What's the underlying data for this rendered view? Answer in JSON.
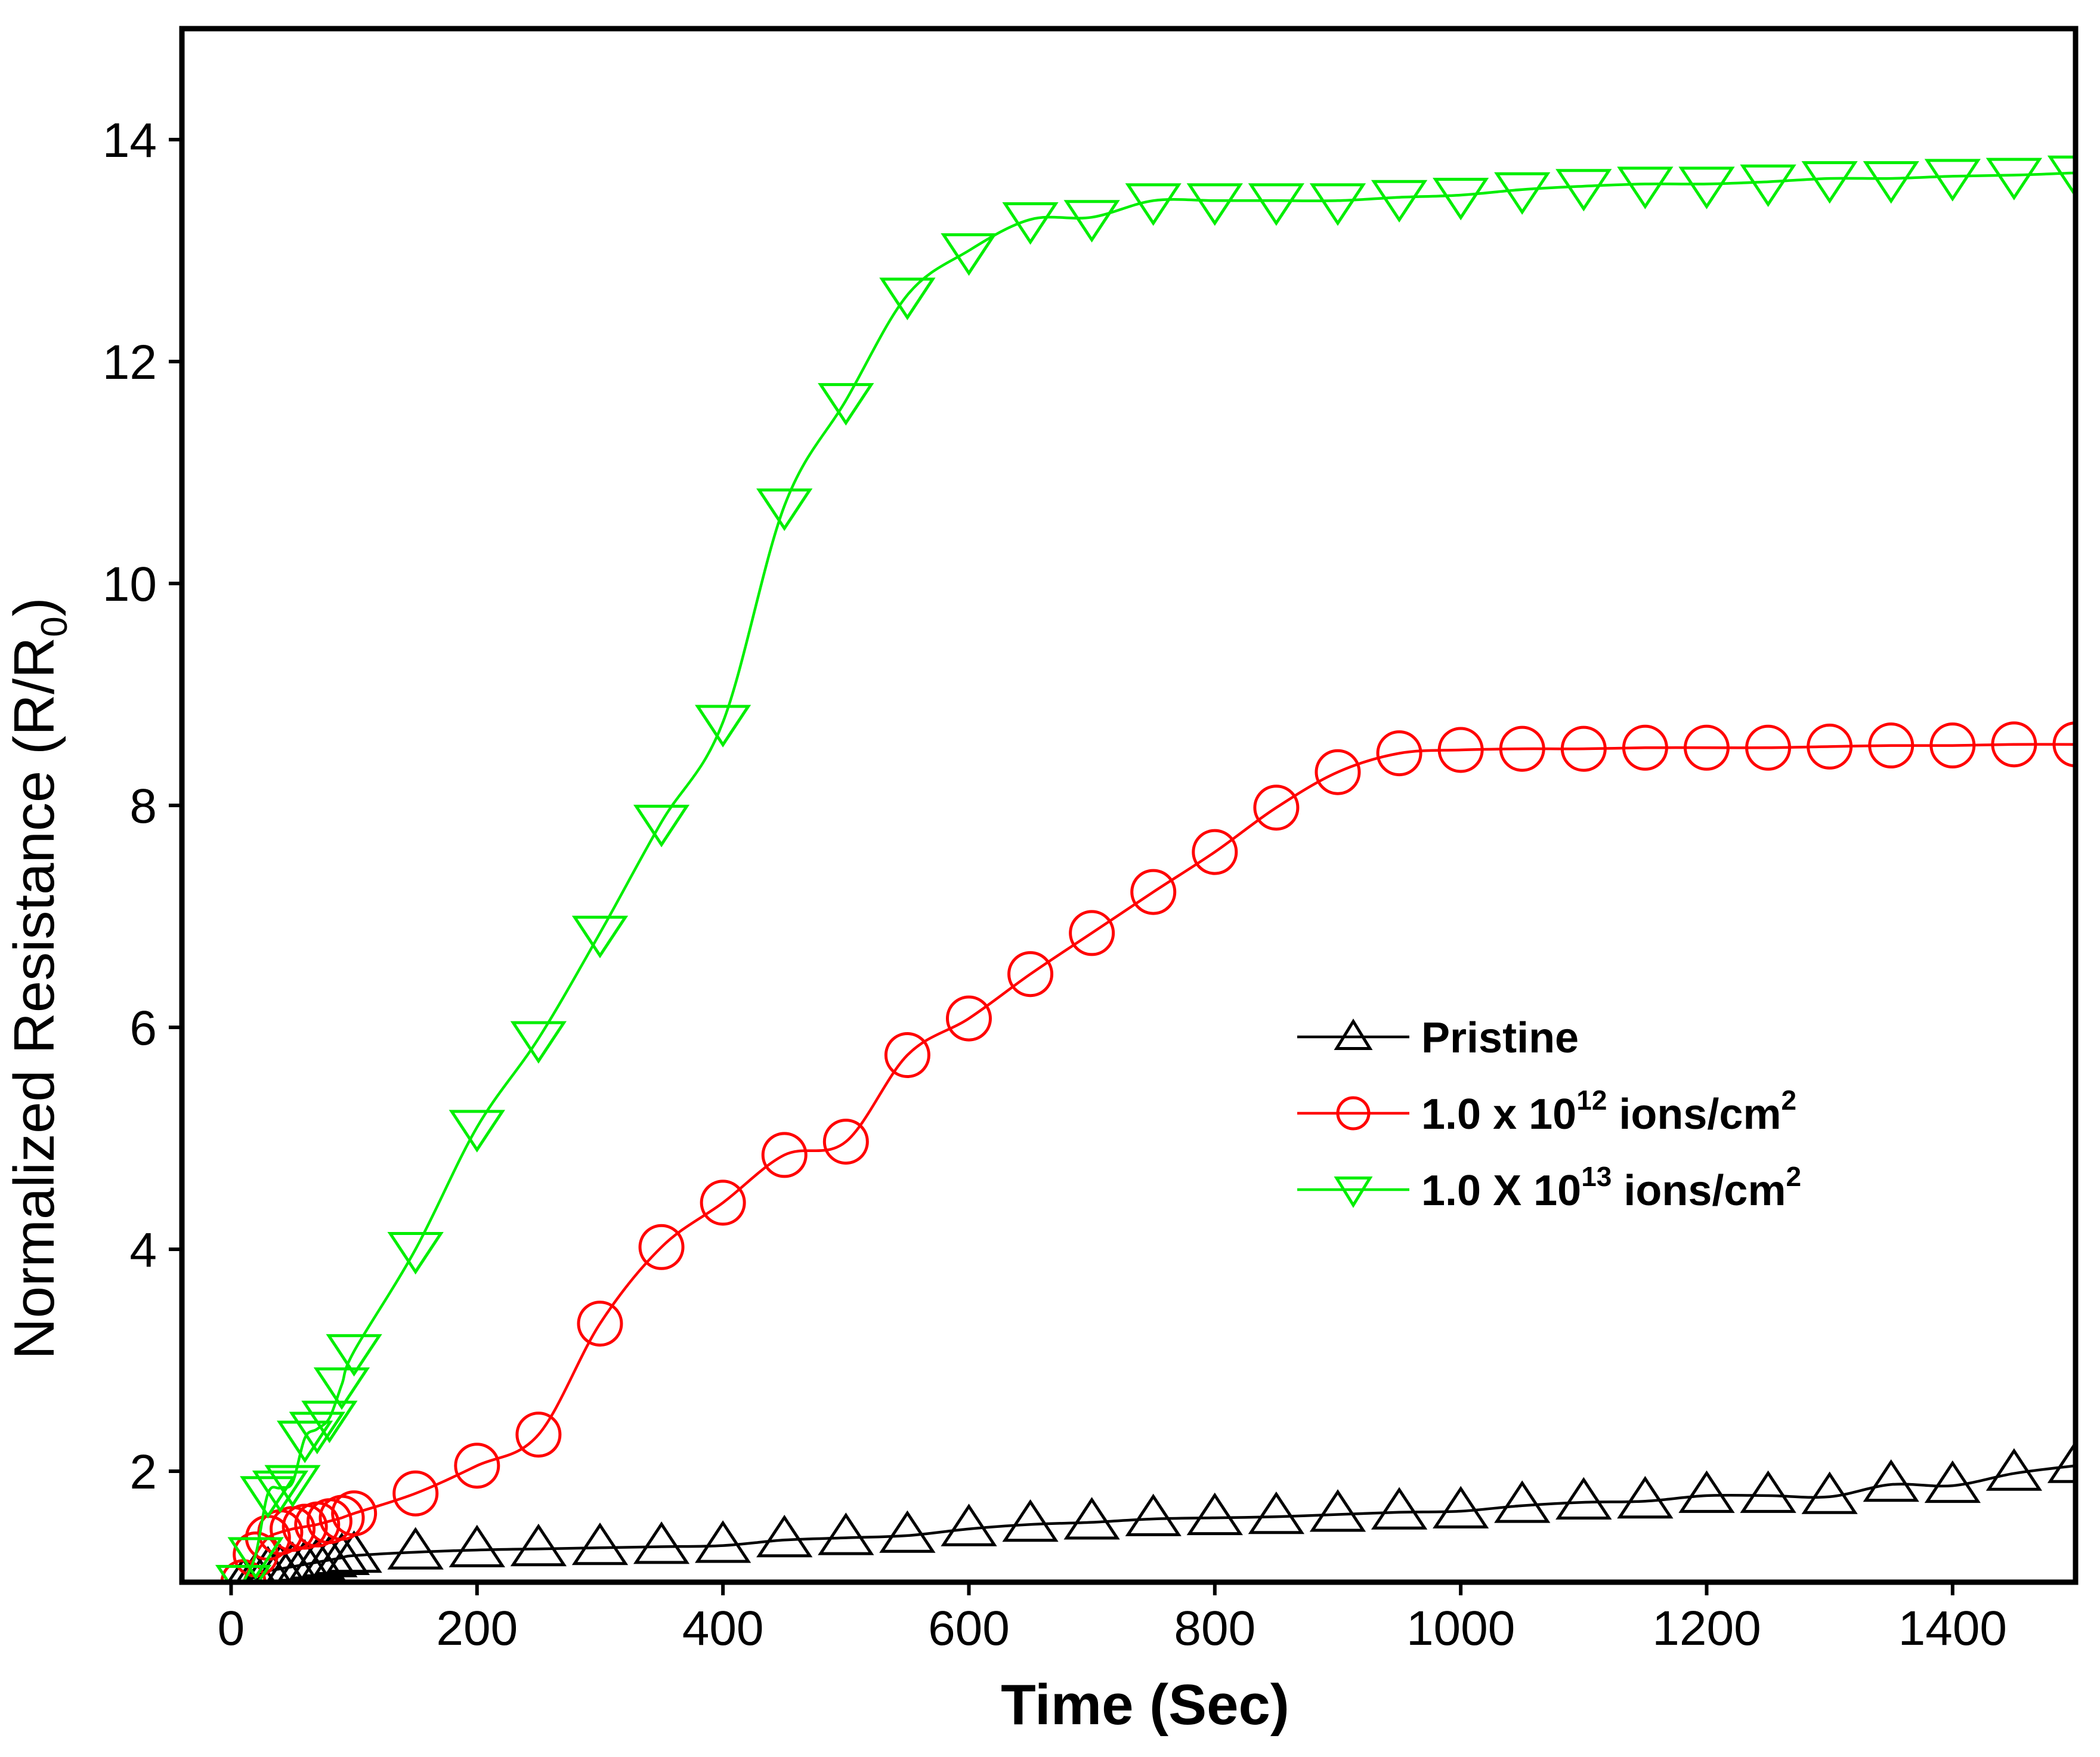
{
  "chart_data": {
    "type": "line",
    "title": "",
    "xlabel": "Time (Sec)",
    "ylabel": "Normalized Resistance (R/R",
    "ylabel_subscript": "0",
    "ylabel_close": ")",
    "xlim": [
      -40,
      1500
    ],
    "ylim": [
      1,
      15
    ],
    "xticks": [
      0,
      200,
      400,
      600,
      800,
      1000,
      1200,
      1400
    ],
    "yticks": [
      2,
      4,
      6,
      8,
      10,
      12,
      14
    ],
    "x_tick_labels": [
      "0",
      "200",
      "400",
      "600",
      "800",
      "1000",
      "1200",
      "1400"
    ],
    "y_tick_labels": [
      "2",
      "4",
      "6",
      "8",
      "10",
      "12",
      "14"
    ],
    "legend_position": "center-right",
    "series": [
      {
        "name": "Pristine",
        "legend_text": "Pristine",
        "legend_sup": "",
        "legend_tail": "",
        "legend_sup2": "",
        "color": "#000000",
        "marker": "triangle-up",
        "x": [
          10,
          20,
          30,
          40,
          50,
          60,
          70,
          80,
          90,
          100,
          150,
          200,
          250,
          300,
          350,
          400,
          450,
          500,
          550,
          600,
          650,
          700,
          750,
          800,
          850,
          900,
          950,
          1000,
          1050,
          1100,
          1150,
          1200,
          1250,
          1300,
          1350,
          1400,
          1450,
          1500
        ],
        "y": [
          1.0,
          1.05,
          1.1,
          1.12,
          1.14,
          1.16,
          1.18,
          1.2,
          1.22,
          1.24,
          1.27,
          1.29,
          1.3,
          1.31,
          1.32,
          1.33,
          1.38,
          1.4,
          1.42,
          1.48,
          1.52,
          1.54,
          1.57,
          1.58,
          1.59,
          1.61,
          1.63,
          1.64,
          1.69,
          1.72,
          1.73,
          1.78,
          1.78,
          1.77,
          1.88,
          1.87,
          1.98,
          2.05
        ]
      },
      {
        "name": "1.0 x 10^12 ions/cm^2",
        "legend_text": "1.0 x 10",
        "legend_sup": "12",
        "legend_tail": " ions/cm",
        "legend_sup2": "2",
        "color": "#ff0000",
        "marker": "circle",
        "x": [
          10,
          20,
          30,
          40,
          50,
          60,
          70,
          80,
          90,
          100,
          150,
          200,
          250,
          300,
          350,
          400,
          450,
          500,
          550,
          600,
          650,
          700,
          750,
          800,
          850,
          900,
          950,
          1000,
          1050,
          1100,
          1150,
          1200,
          1250,
          1300,
          1350,
          1400,
          1450,
          1500
        ],
        "y": [
          1.0,
          1.25,
          1.4,
          1.45,
          1.48,
          1.5,
          1.52,
          1.55,
          1.58,
          1.62,
          1.8,
          2.05,
          2.33,
          3.33,
          4.02,
          4.42,
          4.85,
          4.97,
          5.75,
          6.08,
          6.48,
          6.85,
          7.22,
          7.58,
          7.98,
          8.3,
          8.47,
          8.5,
          8.51,
          8.51,
          8.52,
          8.52,
          8.52,
          8.53,
          8.54,
          8.54,
          8.55,
          8.55
        ]
      },
      {
        "name": "1.0 X 10^13 ions/cm^2",
        "legend_text": "1.0 X 10",
        "legend_sup": "13",
        "legend_tail": " ions/cm",
        "legend_sup2": "2",
        "color": "#00ee00",
        "marker": "triangle-down",
        "x": [
          10,
          20,
          30,
          40,
          50,
          60,
          70,
          80,
          90,
          100,
          150,
          200,
          250,
          300,
          350,
          400,
          450,
          500,
          550,
          600,
          650,
          700,
          750,
          800,
          850,
          900,
          950,
          1000,
          1050,
          1100,
          1150,
          1200,
          1250,
          1300,
          1350,
          1400,
          1450,
          1500
        ],
        "y": [
          1.0,
          1.25,
          1.8,
          1.85,
          1.9,
          2.3,
          2.38,
          2.48,
          2.78,
          3.08,
          4.0,
          5.1,
          5.9,
          6.85,
          7.85,
          8.75,
          10.7,
          11.65,
          12.6,
          13.0,
          13.28,
          13.3,
          13.45,
          13.45,
          13.45,
          13.45,
          13.48,
          13.5,
          13.55,
          13.58,
          13.6,
          13.6,
          13.62,
          13.65,
          13.65,
          13.67,
          13.68,
          13.7
        ]
      }
    ]
  }
}
